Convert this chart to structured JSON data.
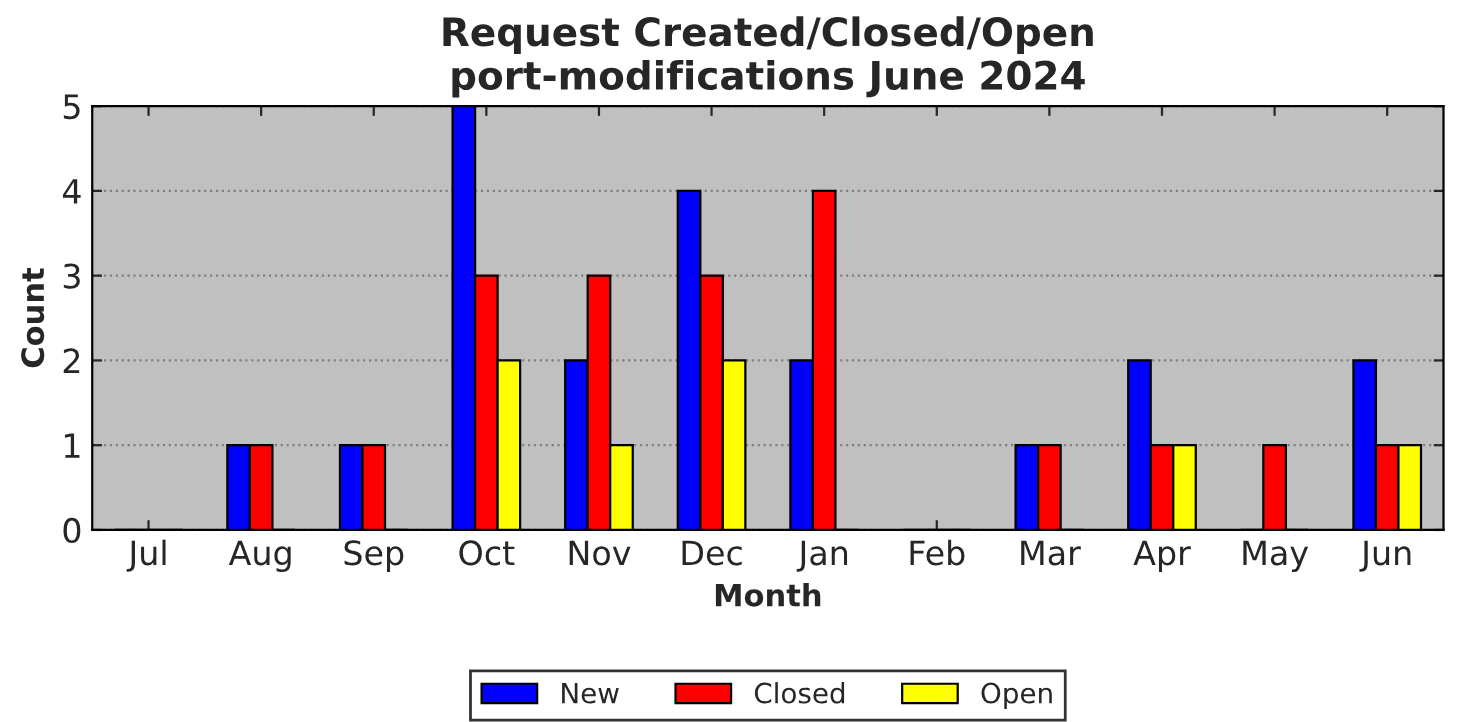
{
  "chart_data": {
    "type": "bar",
    "title": "Request Created/Closed/Open\nport-modifications June 2024",
    "xlabel": "Month",
    "ylabel": "Count",
    "categories": [
      "Jul",
      "Aug",
      "Sep",
      "Oct",
      "Nov",
      "Dec",
      "Jan",
      "Feb",
      "Mar",
      "Apr",
      "May",
      "Jun"
    ],
    "series": [
      {
        "name": "New",
        "color": "#0000ff",
        "values": [
          0,
          1,
          1,
          5,
          2,
          4,
          2,
          0,
          1,
          2,
          0,
          2
        ]
      },
      {
        "name": "Closed",
        "color": "#ff0000",
        "values": [
          0,
          1,
          1,
          3,
          3,
          3,
          4,
          0,
          1,
          1,
          1,
          1
        ]
      },
      {
        "name": "Open",
        "color": "#ffff00",
        "values": [
          0,
          0,
          0,
          2,
          1,
          2,
          0,
          0,
          0,
          1,
          0,
          1
        ]
      }
    ],
    "ylim": [
      0,
      5
    ],
    "yticks": [
      0,
      1,
      2,
      3,
      4,
      5
    ],
    "grid": "y",
    "legend": "bottom"
  }
}
